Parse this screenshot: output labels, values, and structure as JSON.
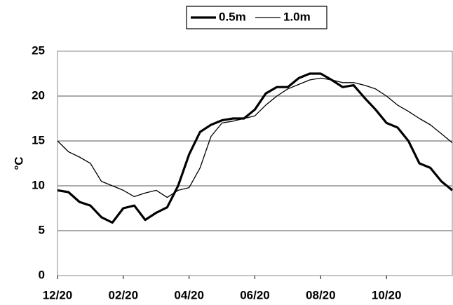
{
  "chart_data": {
    "type": "line",
    "y_label": "°C",
    "categories": [
      "12/20",
      null,
      null,
      null,
      null,
      null,
      "02/20",
      null,
      null,
      null,
      null,
      null,
      "04/20",
      null,
      null,
      null,
      null,
      null,
      "06/20",
      null,
      null,
      null,
      null,
      null,
      "08/20",
      null,
      null,
      null,
      null,
      null,
      "10/20",
      null,
      null,
      null,
      null,
      null,
      null
    ],
    "series": [
      {
        "name": "0.5m",
        "color": "#000000",
        "line_width": 3.2,
        "values": [
          9.5,
          9.3,
          8.2,
          7.8,
          6.5,
          5.9,
          7.5,
          7.8,
          6.2,
          7.0,
          7.6,
          10.0,
          13.5,
          16.0,
          16.8,
          17.3,
          17.5,
          17.5,
          18.5,
          20.3,
          21.0,
          21.0,
          22.0,
          22.5,
          22.5,
          21.8,
          21.0,
          21.2,
          19.8,
          18.5,
          17.0,
          16.5,
          15.0,
          12.5,
          12.0,
          10.5,
          9.5
        ]
      },
      {
        "name": "1.0m",
        "color": "#000000",
        "line_width": 1.3,
        "values": [
          15.0,
          13.8,
          13.2,
          12.5,
          10.5,
          10.0,
          9.5,
          8.8,
          9.2,
          9.5,
          8.7,
          9.5,
          9.8,
          12.0,
          15.5,
          17.0,
          17.2,
          17.5,
          17.8,
          19.0,
          20.0,
          20.8,
          21.3,
          21.8,
          22.0,
          21.8,
          21.5,
          21.5,
          21.2,
          20.8,
          20.0,
          19.0,
          18.3,
          17.5,
          16.8,
          15.8,
          14.8
        ]
      }
    ],
    "ylim": [
      0,
      25
    ],
    "yticks": [
      0,
      5,
      10,
      15,
      20,
      25
    ],
    "grid": true,
    "legend": "top"
  }
}
